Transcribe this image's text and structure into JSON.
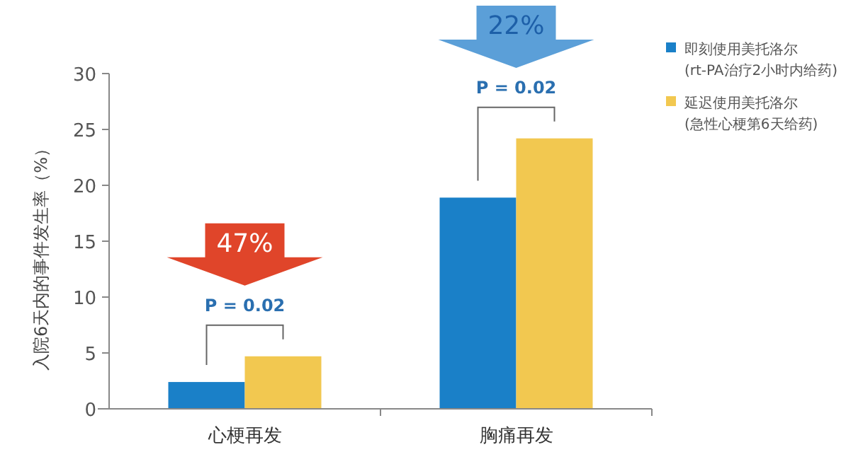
{
  "chart_data": {
    "type": "bar",
    "ylabel": "入院6天内的事件发生率（%）",
    "categories": [
      "心梗再发",
      "胸痛再发"
    ],
    "series": [
      {
        "name": "即刻使用美托洛尔 (rt-PA治疗2小时内给药)",
        "color": "#1a80c8",
        "values": [
          2.4,
          18.9
        ]
      },
      {
        "name": "延迟使用美托洛尔 (急性心梗第6天给药)",
        "color": "#f2c850",
        "values": [
          4.7,
          24.2
        ]
      }
    ],
    "ylim": [
      0,
      30
    ],
    "yticks": [
      0,
      5,
      10,
      15,
      20,
      25,
      30
    ],
    "grid": false,
    "legend": "top right",
    "annotations": [
      "47%",
      "P = 0.02",
      "22%",
      "P = 0.02"
    ]
  }
}
